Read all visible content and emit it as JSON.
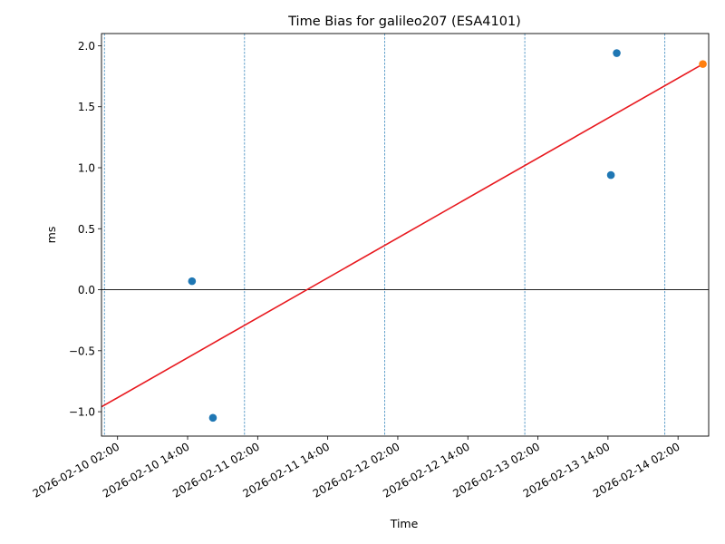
{
  "chart_data": {
    "type": "scatter",
    "title": "Time Bias for galileo207 (ESA4101)",
    "xlabel": "Time",
    "ylabel": "ms",
    "x_type": "datetime",
    "xlim": [
      "2026-02-09T23:15",
      "2026-02-14T07:15"
    ],
    "ylim": [
      -1.2,
      2.1
    ],
    "x_ticks": [
      {
        "value": "2026-02-10T02:00",
        "label": "2026-02-10 02:00"
      },
      {
        "value": "2026-02-10T14:00",
        "label": "2026-02-10 14:00"
      },
      {
        "value": "2026-02-11T02:00",
        "label": "2026-02-11 02:00"
      },
      {
        "value": "2026-02-11T14:00",
        "label": "2026-02-11 14:00"
      },
      {
        "value": "2026-02-12T02:00",
        "label": "2026-02-12 02:00"
      },
      {
        "value": "2026-02-12T14:00",
        "label": "2026-02-12 14:00"
      },
      {
        "value": "2026-02-13T02:00",
        "label": "2026-02-13 02:00"
      },
      {
        "value": "2026-02-13T14:00",
        "label": "2026-02-13 14:00"
      },
      {
        "value": "2026-02-14T02:00",
        "label": "2026-02-14 02:00"
      }
    ],
    "y_ticks": [
      {
        "value": -1.0,
        "label": "−1.0"
      },
      {
        "value": -0.5,
        "label": "−0.5"
      },
      {
        "value": 0.0,
        "label": "0.0"
      },
      {
        "value": 0.5,
        "label": "0.5"
      },
      {
        "value": 1.0,
        "label": "1.0"
      },
      {
        "value": 1.5,
        "label": "1.5"
      },
      {
        "value": 2.0,
        "label": "2.0"
      }
    ],
    "vlines": [
      "2026-02-09T23:45",
      "2026-02-10T23:45",
      "2026-02-11T23:45",
      "2026-02-12T23:45",
      "2026-02-13T23:45"
    ],
    "hline": 0.0,
    "grid": false,
    "series": [
      {
        "kind": "scatter",
        "color": "#1f77b4",
        "points": [
          {
            "x": "2026-02-10T14:45",
            "y": 0.07
          },
          {
            "x": "2026-02-10T18:20",
            "y": -1.05
          },
          {
            "x": "2026-02-13T14:30",
            "y": 0.94
          },
          {
            "x": "2026-02-13T15:30",
            "y": 1.94
          }
        ]
      },
      {
        "kind": "scatter",
        "color": "#ff7f0e",
        "points": [
          {
            "x": "2026-02-14T06:15",
            "y": 1.85
          }
        ]
      },
      {
        "kind": "line",
        "color": "#e8191f",
        "points": [
          {
            "x": "2026-02-09T23:15",
            "y": -0.96
          },
          {
            "x": "2026-02-14T06:15",
            "y": 1.85
          }
        ]
      }
    ]
  }
}
